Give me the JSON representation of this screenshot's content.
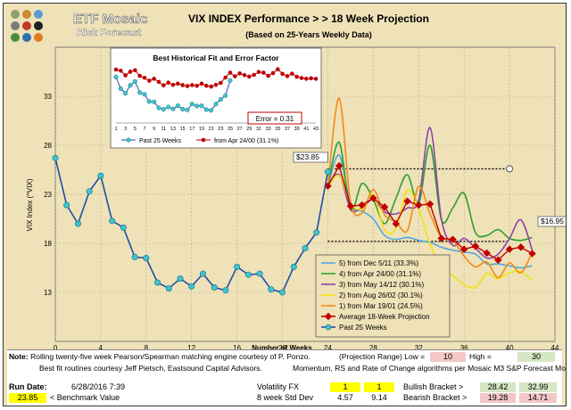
{
  "app": {
    "brand": "ETF Mosaic",
    "subtitle": "Risk Forecast",
    "logo_dot_colors": [
      "#8fa06a",
      "#c78b2e",
      "#5a9bd4",
      "#7a7a7a",
      "#c0392b",
      "#1f1f1f",
      "#4a8c3b",
      "#2f6fb5",
      "#e07b22"
    ]
  },
  "header": {
    "title": "VIX  INDEX Performance > > 18 Week Projection",
    "subtitle": "(Based on 25-Years Weekly Data)"
  },
  "colors": {
    "panel_bg": "#efe2b8",
    "past_line": "#1f4fa8",
    "past_marker": "#3ec4d0",
    "avg_projection": "#c00000",
    "series_5": "#4fa8e0",
    "series_4": "#2ca02c",
    "series_3": "#8e44ad",
    "series_2": "#f1e10f",
    "series_1": "#f28a1c"
  },
  "chart_data": [
    {
      "type": "line",
      "title": "",
      "xlabel": "Number of Weeks",
      "ylabel": "VIX Index (^VIX)",
      "xlim": [
        0,
        44
      ],
      "ylim": [
        8,
        38
      ],
      "xticks": [
        0,
        4,
        8,
        12,
        16,
        20,
        24,
        28,
        32,
        36,
        40,
        44
      ],
      "yticks": [
        13,
        18,
        23,
        28,
        33
      ],
      "grid": true,
      "legend_position": "bottom-right",
      "series": [
        {
          "name": "Past 25 Weeks",
          "x": [
            0,
            1,
            2,
            3,
            4,
            5,
            6,
            7,
            8,
            9,
            10,
            11,
            12,
            13,
            14,
            15,
            16,
            17,
            18,
            19,
            20,
            21,
            22,
            23,
            24
          ],
          "y": [
            26.7,
            21.9,
            20.0,
            23.3,
            24.9,
            20.3,
            19.6,
            16.6,
            16.5,
            14.0,
            13.4,
            14.4,
            13.6,
            14.9,
            13.5,
            13.2,
            15.6,
            14.8,
            14.9,
            13.3,
            13.0,
            15.6,
            17.5,
            19.1,
            25.3
          ]
        },
        {
          "name": "5)  from Dec 5/11 (33.3%)",
          "x": [
            24,
            25,
            26,
            27,
            28,
            29,
            30,
            31,
            32,
            33,
            34,
            35,
            36,
            37,
            38,
            39,
            40,
            41,
            42
          ],
          "y": [
            23.8,
            27.0,
            22.0,
            21.3,
            20.5,
            18.8,
            18.4,
            18.6,
            18.3,
            18.1,
            17.6,
            17.3,
            17.1,
            16.9,
            15.9,
            15.9,
            15.7,
            15.5,
            15.7
          ]
        },
        {
          "name": "4)  from Apr 24/00 (31.1%)",
          "x": [
            24,
            25,
            26,
            27,
            28,
            29,
            30,
            31,
            32,
            33,
            34,
            35,
            36,
            37,
            38,
            39,
            40,
            41,
            42
          ],
          "y": [
            23.8,
            28.3,
            21.4,
            24.1,
            22.5,
            20.0,
            22.6,
            25.0,
            22.1,
            28.0,
            20.4,
            21.6,
            23.1,
            19.1,
            18.8,
            19.4,
            18.5,
            18.3,
            18.6
          ]
        },
        {
          "name": "3)  from May 14/12 (30.1%)",
          "x": [
            24,
            25,
            26,
            27,
            28,
            29,
            30,
            31,
            32,
            33,
            34,
            35,
            36,
            37,
            38,
            39,
            40,
            41,
            42
          ],
          "y": [
            23.8,
            25.0,
            21.5,
            21.6,
            22.5,
            21.2,
            21.0,
            21.6,
            22.4,
            29.8,
            20.5,
            17.8,
            18.5,
            17.5,
            16.5,
            16.9,
            18.5,
            20.4,
            17.3
          ]
        },
        {
          "name": "2)  from Aug 26/02 (30.1%)",
          "x": [
            24,
            25,
            26,
            27,
            28,
            29,
            30,
            31,
            32,
            33,
            34,
            35,
            36,
            37,
            38,
            39,
            40,
            41,
            42
          ],
          "y": [
            23.8,
            24.9,
            22.1,
            21.5,
            23.0,
            19.4,
            19.5,
            23.4,
            21.5,
            17.9,
            15.6,
            14.7,
            13.8,
            13.5,
            14.9,
            14.4,
            15.0,
            15.1,
            14.2
          ]
        },
        {
          "name": "1)  from Mar 19/01 (24.5%)",
          "x": [
            24,
            25,
            26,
            27,
            28,
            29,
            30,
            31,
            32,
            33,
            34,
            35,
            36,
            37,
            38,
            39,
            40,
            41,
            42
          ],
          "y": [
            23.8,
            32.8,
            22.2,
            21.1,
            23.5,
            20.9,
            20.2,
            19.3,
            23.8,
            21.0,
            18.6,
            18.3,
            16.7,
            15.6,
            16.1,
            14.5,
            16.0,
            15.0,
            17.1
          ]
        },
        {
          "name": "Average 18-Week Projection",
          "x": [
            24,
            25,
            26,
            27,
            28,
            29,
            30,
            31,
            32,
            33,
            34,
            35,
            36,
            37,
            38,
            39,
            40,
            41,
            42
          ],
          "y": [
            23.85,
            25.9,
            21.8,
            21.9,
            22.6,
            21.7,
            20.0,
            22.3,
            21.9,
            22.0,
            18.5,
            18.4,
            17.4,
            17.7,
            17.0,
            16.3,
            17.4,
            17.6,
            16.95
          ]
        }
      ],
      "reference_lines": [
        {
          "x_start": 24,
          "x_end": 40,
          "y": 25.6
        },
        {
          "x_start": 24,
          "x_end": 40,
          "y": 18.2
        }
      ],
      "annotations": {
        "start_value": "$23.85",
        "end_value": "$16.95",
        "x_axis_label": "Number of Weeks"
      }
    },
    {
      "type": "line",
      "title": "Best Historical Fit and Error Factor",
      "xticks": [
        1,
        3,
        5,
        7,
        9,
        11,
        13,
        15,
        17,
        19,
        21,
        23,
        25,
        27,
        29,
        31,
        33,
        35,
        37,
        39,
        41,
        43
      ],
      "error_label": "Error = 0.31",
      "legend_position": "bottom",
      "series": [
        {
          "name": "Past 25 Weeks",
          "x": [
            1,
            2,
            3,
            4,
            5,
            6,
            7,
            8,
            9,
            10,
            11,
            12,
            13,
            14,
            15,
            16,
            17,
            18,
            19,
            20,
            21,
            22,
            23,
            24,
            25
          ],
          "y": [
            26.7,
            21.9,
            20.0,
            23.3,
            24.9,
            20.3,
            19.6,
            16.6,
            16.5,
            14.0,
            13.4,
            14.4,
            13.6,
            14.9,
            13.5,
            13.2,
            15.6,
            14.8,
            14.9,
            13.3,
            13.0,
            15.6,
            17.5,
            19.1,
            25.3
          ]
        },
        {
          "name": "from Apr 24/00 (31.1%)",
          "x": [
            1,
            2,
            3,
            4,
            5,
            6,
            7,
            8,
            9,
            10,
            11,
            12,
            13,
            14,
            15,
            16,
            17,
            18,
            19,
            20,
            21,
            22,
            23,
            24,
            25,
            26,
            27,
            28,
            29,
            30,
            31,
            32,
            33,
            34,
            35,
            36,
            37,
            38,
            39,
            40,
            41,
            42,
            43
          ],
          "y": [
            29.8,
            29.3,
            27.4,
            28.9,
            29.5,
            27.2,
            26.4,
            25.2,
            26.0,
            24.7,
            23.3,
            24.4,
            23.5,
            24.0,
            23.4,
            23.0,
            23.4,
            23.1,
            24.0,
            23.1,
            22.8,
            23.5,
            24.3,
            26.5,
            28.5,
            27.0,
            28.2,
            27.5,
            26.9,
            27.6,
            28.8,
            28.5,
            27.2,
            28.3,
            29.9,
            28.0,
            27.1,
            28.1,
            26.8,
            26.3,
            26.0,
            26.2,
            26.0
          ]
        }
      ]
    }
  ],
  "footer": {
    "note_label": "Note:",
    "note_text": "Rolling twenty-five week Pearson/Spearman matching engine courtesy of P. Ponzo.",
    "projection_range_label": "(Projection Range) Low =",
    "low_value": "10",
    "high_label": "High =",
    "high_value": "30",
    "credit_1": "Best fit routines courtesy Jeff Pietsch, Eastsound Capital Advisors.",
    "credit_2": "Momentum, RS and Rate of Change algorithms per Mosaic M3 S&P Forecast Model",
    "run_date_label": "Run Date:",
    "run_date_value": "6/28/2016 7:39",
    "benchmark_value": "23.85",
    "benchmark_label": "< Benchmark Value",
    "volatility_label": "Volatility FX",
    "volatility_1": "1",
    "volatility_2": "1",
    "std_label": "8 week Std Dev",
    "std_1": "4.57",
    "std_2": "9.14",
    "bullish_label": "Bullish Bracket >",
    "bullish_1": "28.42",
    "bullish_2": "32.99",
    "bearish_label": "Bearish Bracket >",
    "bearish_1": "19.28",
    "bearish_2": "14.71"
  }
}
